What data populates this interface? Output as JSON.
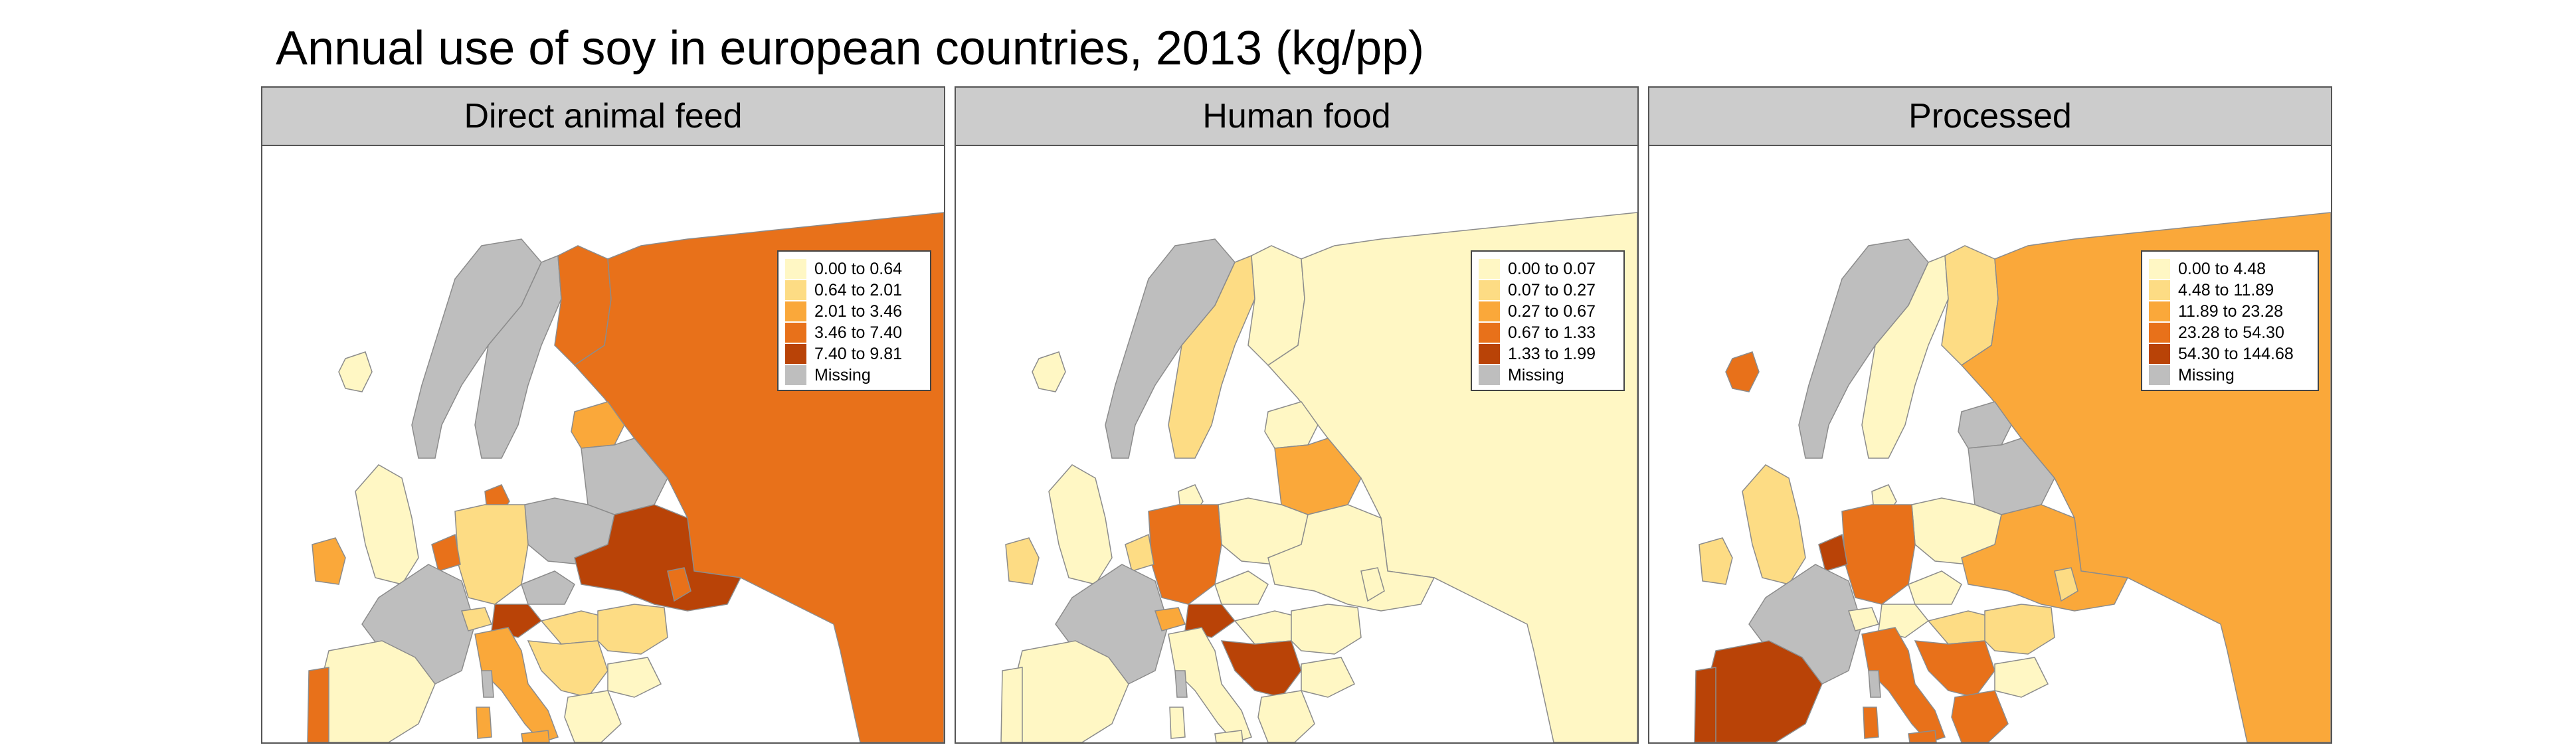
{
  "title": "Annual use of soy in european countries, 2013 (kg/pp)",
  "colors": {
    "class1": "#FFF7C4",
    "class2": "#FDDC84",
    "class3": "#FAA83A",
    "class4": "#E8711A",
    "class5": "#B94307",
    "missing": "#BEBEBE",
    "border": "#8C8C8C"
  },
  "panels": [
    {
      "title": "Direct animal feed",
      "legend": [
        "0.00 to 0.64",
        "0.64 to 2.01",
        "2.01 to 3.46",
        "3.46 to 7.40",
        "7.40 to 9.81",
        "Missing"
      ],
      "countries": {
        "norway": "missing",
        "sweden": "missing",
        "finland": "class4",
        "russia": "class4",
        "uk": "class1",
        "ireland": "class3",
        "iceland": "class1",
        "denmark": "class4",
        "germany": "class2",
        "poland": "missing",
        "belarus": "missing",
        "baltics": "class3",
        "ukraine": "class5",
        "france": "missing",
        "spain": "class1",
        "portugal": "class4",
        "italy": "class3",
        "austria": "class5",
        "czech": "missing",
        "hungary": "class2",
        "romania": "class2",
        "bulgaria": "class1",
        "greece": "class1",
        "balkans": "class2",
        "benelux": "class4",
        "switzerland": "class2",
        "moldova": "class4",
        "corsica": "missing",
        "sardinia": "class3",
        "sicily": "class3"
      }
    },
    {
      "title": "Human food",
      "legend": [
        "0.00 to 0.07",
        "0.07 to 0.27",
        "0.27 to 0.67",
        "0.67 to 1.33",
        "1.33 to 1.99",
        "Missing"
      ],
      "countries": {
        "norway": "missing",
        "sweden": "class2",
        "finland": "class1",
        "russia": "class1",
        "uk": "class1",
        "ireland": "class2",
        "iceland": "class1",
        "denmark": "class1",
        "germany": "class4",
        "poland": "class1",
        "belarus": "class3",
        "baltics": "class1",
        "ukraine": "class1",
        "france": "missing",
        "spain": "class1",
        "portugal": "class1",
        "italy": "class1",
        "austria": "class5",
        "czech": "class1",
        "hungary": "class1",
        "romania": "class1",
        "bulgaria": "class1",
        "greece": "class1",
        "balkans": "class5",
        "benelux": "class2",
        "switzerland": "class3",
        "moldova": "class1",
        "corsica": "missing",
        "sardinia": "class1",
        "sicily": "class1"
      }
    },
    {
      "title": "Processed",
      "legend": [
        "0.00 to 4.48",
        "4.48 to 11.89",
        "11.89 to 23.28",
        "23.28 to 54.30",
        "54.30 to 144.68",
        "Missing"
      ],
      "countries": {
        "norway": "missing",
        "sweden": "class1",
        "finland": "class2",
        "russia": "class3",
        "uk": "class2",
        "ireland": "class2",
        "iceland": "class4",
        "denmark": "class1",
        "germany": "class4",
        "poland": "class1",
        "belarus": "missing",
        "baltics": "missing",
        "ukraine": "class3",
        "france": "missing",
        "spain": "class5",
        "portugal": "class5",
        "italy": "class4",
        "austria": "class1",
        "czech": "class1",
        "hungary": "class2",
        "romania": "class2",
        "bulgaria": "class1",
        "greece": "class4",
        "balkans": "class4",
        "benelux": "class5",
        "switzerland": "class1",
        "moldova": "class2",
        "corsica": "missing",
        "sardinia": "class4",
        "sicily": "class4"
      }
    }
  ]
}
